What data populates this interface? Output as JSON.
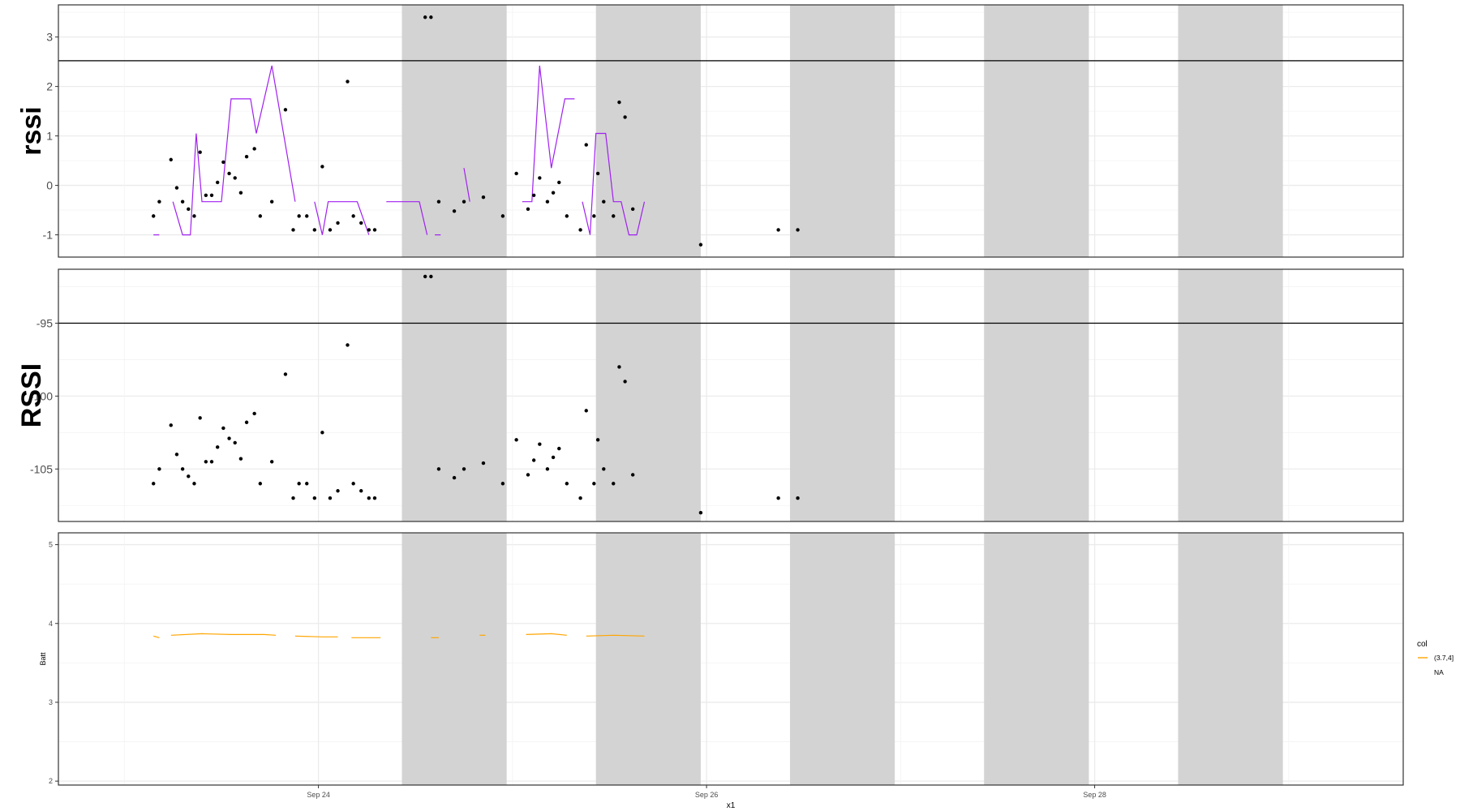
{
  "chart_data": [
    {
      "type": "scatter",
      "ylabel": "rssi",
      "yticks": [
        -1,
        0,
        1,
        2,
        3
      ],
      "ylim": [
        -1.45,
        3.65
      ],
      "hline": 2.52,
      "points": [
        {
          "x": 23.15,
          "y": -0.62
        },
        {
          "x": 23.18,
          "y": -0.33
        },
        {
          "x": 23.24,
          "y": 0.52
        },
        {
          "x": 23.27,
          "y": -0.05
        },
        {
          "x": 23.3,
          "y": -0.33
        },
        {
          "x": 23.33,
          "y": -0.48
        },
        {
          "x": 23.36,
          "y": -0.62
        },
        {
          "x": 23.39,
          "y": 0.67
        },
        {
          "x": 23.42,
          "y": -0.2
        },
        {
          "x": 23.45,
          "y": -0.2
        },
        {
          "x": 23.48,
          "y": 0.06
        },
        {
          "x": 23.51,
          "y": 0.47
        },
        {
          "x": 23.54,
          "y": 0.24
        },
        {
          "x": 23.57,
          "y": 0.15
        },
        {
          "x": 23.6,
          "y": -0.15
        },
        {
          "x": 23.63,
          "y": 0.58
        },
        {
          "x": 23.67,
          "y": 0.74
        },
        {
          "x": 23.7,
          "y": -0.62
        },
        {
          "x": 23.76,
          "y": -0.33
        },
        {
          "x": 23.83,
          "y": 1.53
        },
        {
          "x": 23.87,
          "y": -0.9
        },
        {
          "x": 23.9,
          "y": -0.62
        },
        {
          "x": 23.94,
          "y": -0.62
        },
        {
          "x": 23.98,
          "y": -0.9
        },
        {
          "x": 24.02,
          "y": 0.38
        },
        {
          "x": 24.06,
          "y": -0.9
        },
        {
          "x": 24.1,
          "y": -0.76
        },
        {
          "x": 24.15,
          "y": 2.1
        },
        {
          "x": 24.18,
          "y": -0.62
        },
        {
          "x": 24.22,
          "y": -0.76
        },
        {
          "x": 24.26,
          "y": -0.9
        },
        {
          "x": 24.29,
          "y": -0.9
        },
        {
          "x": 24.55,
          "y": 3.4
        },
        {
          "x": 24.58,
          "y": 3.4
        },
        {
          "x": 24.62,
          "y": -0.33
        },
        {
          "x": 24.7,
          "y": -0.52
        },
        {
          "x": 24.75,
          "y": -0.33
        },
        {
          "x": 24.85,
          "y": -0.24
        },
        {
          "x": 24.95,
          "y": -0.62
        },
        {
          "x": 25.02,
          "y": 0.24
        },
        {
          "x": 25.08,
          "y": -0.48
        },
        {
          "x": 25.11,
          "y": -0.2
        },
        {
          "x": 25.14,
          "y": 0.15
        },
        {
          "x": 25.18,
          "y": -0.33
        },
        {
          "x": 25.21,
          "y": -0.15
        },
        {
          "x": 25.24,
          "y": 0.06
        },
        {
          "x": 25.28,
          "y": -0.62
        },
        {
          "x": 25.35,
          "y": -0.9
        },
        {
          "x": 25.38,
          "y": 0.82
        },
        {
          "x": 25.42,
          "y": -0.62
        },
        {
          "x": 25.44,
          "y": 0.24
        },
        {
          "x": 25.47,
          "y": -0.33
        },
        {
          "x": 25.52,
          "y": -0.62
        },
        {
          "x": 25.55,
          "y": 1.68
        },
        {
          "x": 25.58,
          "y": 1.38
        },
        {
          "x": 25.62,
          "y": -0.48
        },
        {
          "x": 25.97,
          "y": -1.2
        },
        {
          "x": 26.37,
          "y": -0.9
        },
        {
          "x": 26.47,
          "y": -0.9
        }
      ],
      "line_segments": [
        [
          {
            "x": 23.15,
            "y": -1.0
          },
          {
            "x": 23.18,
            "y": -1.0
          }
        ],
        [
          {
            "x": 23.25,
            "y": -0.33
          },
          {
            "x": 23.3,
            "y": -1.0
          },
          {
            "x": 23.34,
            "y": -1.0
          },
          {
            "x": 23.37,
            "y": 1.05
          },
          {
            "x": 23.4,
            "y": -0.33
          },
          {
            "x": 23.5,
            "y": -0.33
          },
          {
            "x": 23.55,
            "y": 1.75
          },
          {
            "x": 23.65,
            "y": 1.75
          },
          {
            "x": 23.68,
            "y": 1.05
          },
          {
            "x": 23.76,
            "y": 2.42
          },
          {
            "x": 23.82,
            "y": 1.05
          },
          {
            "x": 23.88,
            "y": -0.33
          }
        ],
        [
          {
            "x": 23.98,
            "y": -0.33
          },
          {
            "x": 24.02,
            "y": -1.0
          },
          {
            "x": 24.05,
            "y": -0.33
          },
          {
            "x": 24.2,
            "y": -0.33
          },
          {
            "x": 24.26,
            "y": -1.0
          }
        ],
        [
          {
            "x": 24.35,
            "y": -0.33
          },
          {
            "x": 24.52,
            "y": -0.33
          },
          {
            "x": 24.56,
            "y": -1.0
          }
        ],
        [
          {
            "x": 24.6,
            "y": -1.0
          },
          {
            "x": 24.63,
            "y": -1.0
          }
        ],
        [
          {
            "x": 24.75,
            "y": 0.35
          },
          {
            "x": 24.78,
            "y": -0.33
          }
        ],
        [
          {
            "x": 25.05,
            "y": -0.33
          },
          {
            "x": 25.1,
            "y": -0.33
          },
          {
            "x": 25.14,
            "y": 2.42
          },
          {
            "x": 25.2,
            "y": 0.35
          },
          {
            "x": 25.27,
            "y": 1.75
          },
          {
            "x": 25.32,
            "y": 1.75
          }
        ],
        [
          {
            "x": 25.36,
            "y": -0.33
          },
          {
            "x": 25.4,
            "y": -1.0
          },
          {
            "x": 25.43,
            "y": 1.05
          },
          {
            "x": 25.48,
            "y": 1.05
          },
          {
            "x": 25.52,
            "y": -0.33
          },
          {
            "x": 25.56,
            "y": -0.33
          },
          {
            "x": 25.6,
            "y": -1.0
          },
          {
            "x": 25.64,
            "y": -1.0
          },
          {
            "x": 25.68,
            "y": -0.33
          }
        ]
      ]
    },
    {
      "type": "scatter",
      "ylabel": "RSSI",
      "yticks": [
        -105,
        -100,
        -95
      ],
      "ylim": [
        -108.6,
        -91.3
      ],
      "hline": -95.0,
      "points": [
        {
          "x": 23.15,
          "y": -106
        },
        {
          "x": 23.18,
          "y": -105
        },
        {
          "x": 23.24,
          "y": -102
        },
        {
          "x": 23.27,
          "y": -104
        },
        {
          "x": 23.3,
          "y": -105
        },
        {
          "x": 23.33,
          "y": -105.5
        },
        {
          "x": 23.36,
          "y": -106
        },
        {
          "x": 23.39,
          "y": -101.5
        },
        {
          "x": 23.42,
          "y": -104.5
        },
        {
          "x": 23.45,
          "y": -104.5
        },
        {
          "x": 23.48,
          "y": -103.5
        },
        {
          "x": 23.51,
          "y": -102.2
        },
        {
          "x": 23.54,
          "y": -102.9
        },
        {
          "x": 23.57,
          "y": -103.2
        },
        {
          "x": 23.6,
          "y": -104.3
        },
        {
          "x": 23.63,
          "y": -101.8
        },
        {
          "x": 23.67,
          "y": -101.2
        },
        {
          "x": 23.7,
          "y": -106
        },
        {
          "x": 23.76,
          "y": -104.5
        },
        {
          "x": 23.83,
          "y": -98.5
        },
        {
          "x": 23.87,
          "y": -107
        },
        {
          "x": 23.9,
          "y": -106
        },
        {
          "x": 23.94,
          "y": -106
        },
        {
          "x": 23.98,
          "y": -107
        },
        {
          "x": 24.02,
          "y": -102.5
        },
        {
          "x": 24.06,
          "y": -107
        },
        {
          "x": 24.1,
          "y": -106.5
        },
        {
          "x": 24.15,
          "y": -96.5
        },
        {
          "x": 24.18,
          "y": -106
        },
        {
          "x": 24.22,
          "y": -106.5
        },
        {
          "x": 24.26,
          "y": -107
        },
        {
          "x": 24.29,
          "y": -107
        },
        {
          "x": 24.55,
          "y": -91.8
        },
        {
          "x": 24.58,
          "y": -91.8
        },
        {
          "x": 24.62,
          "y": -105
        },
        {
          "x": 24.7,
          "y": -105.6
        },
        {
          "x": 24.75,
          "y": -105
        },
        {
          "x": 24.85,
          "y": -104.6
        },
        {
          "x": 24.95,
          "y": -106
        },
        {
          "x": 25.02,
          "y": -103
        },
        {
          "x": 25.08,
          "y": -105.4
        },
        {
          "x": 25.11,
          "y": -104.4
        },
        {
          "x": 25.14,
          "y": -103.3
        },
        {
          "x": 25.18,
          "y": -105
        },
        {
          "x": 25.21,
          "y": -104.2
        },
        {
          "x": 25.24,
          "y": -103.6
        },
        {
          "x": 25.28,
          "y": -106
        },
        {
          "x": 25.35,
          "y": -107
        },
        {
          "x": 25.38,
          "y": -101
        },
        {
          "x": 25.42,
          "y": -106
        },
        {
          "x": 25.44,
          "y": -103
        },
        {
          "x": 25.47,
          "y": -105
        },
        {
          "x": 25.52,
          "y": -106
        },
        {
          "x": 25.55,
          "y": -98
        },
        {
          "x": 25.58,
          "y": -99
        },
        {
          "x": 25.62,
          "y": -105.4
        },
        {
          "x": 25.97,
          "y": -108
        },
        {
          "x": 26.37,
          "y": -107
        },
        {
          "x": 26.47,
          "y": -107
        }
      ]
    },
    {
      "type": "line",
      "ylabel": "Batt",
      "xlabel": "x1",
      "yticks": [
        2,
        3,
        4,
        5
      ],
      "ylim": [
        1.95,
        5.15
      ],
      "legend": {
        "title": "col",
        "entries": [
          {
            "label": "(3.7,4]",
            "color": "#FFA500"
          },
          {
            "label": "NA",
            "color": ""
          }
        ],
        "position": "right"
      },
      "segments": [
        [
          {
            "x": 23.15,
            "y": 3.84
          },
          {
            "x": 23.18,
            "y": 3.82
          }
        ],
        [
          {
            "x": 23.24,
            "y": 3.85
          },
          {
            "x": 23.4,
            "y": 3.87
          },
          {
            "x": 23.55,
            "y": 3.86
          },
          {
            "x": 23.72,
            "y": 3.86
          },
          {
            "x": 23.78,
            "y": 3.85
          }
        ],
        [
          {
            "x": 23.88,
            "y": 3.84
          },
          {
            "x": 24.02,
            "y": 3.83
          },
          {
            "x": 24.1,
            "y": 3.83
          }
        ],
        [
          {
            "x": 24.17,
            "y": 3.82
          },
          {
            "x": 24.32,
            "y": 3.82
          }
        ],
        [
          {
            "x": 24.58,
            "y": 3.82
          },
          {
            "x": 24.62,
            "y": 3.82
          }
        ],
        [
          {
            "x": 24.83,
            "y": 3.85
          },
          {
            "x": 24.86,
            "y": 3.85
          }
        ],
        [
          {
            "x": 25.07,
            "y": 3.86
          },
          {
            "x": 25.2,
            "y": 3.87
          },
          {
            "x": 25.28,
            "y": 3.85
          }
        ],
        [
          {
            "x": 25.38,
            "y": 3.84
          },
          {
            "x": 25.52,
            "y": 3.85
          },
          {
            "x": 25.68,
            "y": 3.84
          }
        ]
      ]
    }
  ],
  "x_axis": {
    "ticks": [
      {
        "x": 24,
        "label": "Sep 24"
      },
      {
        "x": 26,
        "label": "Sep 26"
      },
      {
        "x": 28,
        "label": "Sep 28"
      }
    ],
    "xlim": [
      22.66,
      29.59
    ],
    "shaded_bands": [
      [
        24.43,
        24.97
      ],
      [
        25.43,
        25.97
      ],
      [
        26.43,
        26.97
      ],
      [
        27.43,
        27.97
      ],
      [
        28.43,
        28.97
      ]
    ],
    "shade_color": "#d3d3d3"
  },
  "colors": {
    "line": "#A020F0",
    "points": "#000000",
    "batt": "#FFA500",
    "grid": "#ebebeb",
    "border": "#333333"
  }
}
